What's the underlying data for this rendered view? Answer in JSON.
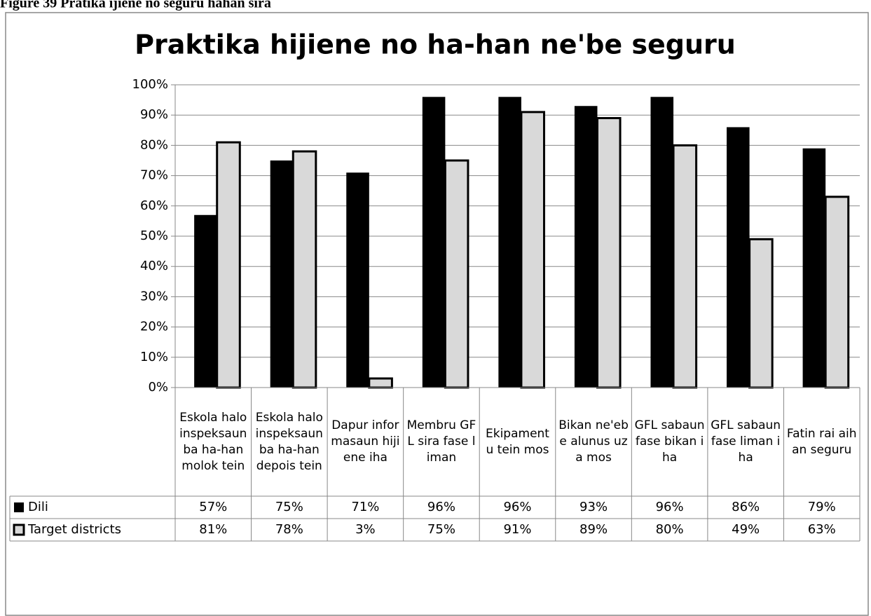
{
  "chart_data": {
    "type": "bar",
    "caption": "Figure 39 Pratika ijiene no seguru hahan sira",
    "title": "Praktika hijiene no ha-han ne'be seguru",
    "categories": [
      "Eskola halo inspeksaun ba ha-han molok tein",
      "Eskola halo inspeksaun ba ha-han depois tein",
      "Dapur informasaun hijiene iha",
      "Membru GFL sira fase liman",
      "Ekipamentu tein mos",
      "Bikan ne'ebe alunus uza mos",
      "GFL sabaun fase bikan iha",
      "GFL sabaun fase liman iha",
      "Fatin rai aihan seguru"
    ],
    "series": [
      {
        "name": "Dili",
        "color": "#000000",
        "values": [
          57,
          75,
          71,
          96,
          96,
          93,
          96,
          86,
          79
        ],
        "value_labels": [
          "57%",
          "75%",
          "71%",
          "96%",
          "96%",
          "93%",
          "96%",
          "86%",
          "79%"
        ]
      },
      {
        "name": "Target districts",
        "color": "#d9d9d9",
        "values": [
          81,
          78,
          3,
          75,
          91,
          89,
          80,
          49,
          63
        ],
        "value_labels": [
          "81%",
          "78%",
          "3%",
          "75%",
          "91%",
          "89%",
          "80%",
          "49%",
          "63%"
        ]
      }
    ],
    "ylim": [
      0,
      100
    ],
    "yticks": [
      {
        "value": 0,
        "label": "0%"
      },
      {
        "value": 10,
        "label": "10%"
      },
      {
        "value": 20,
        "label": "20%"
      },
      {
        "value": 30,
        "label": "30%"
      },
      {
        "value": 40,
        "label": "40%"
      },
      {
        "value": 50,
        "label": "50%"
      },
      {
        "value": 60,
        "label": "60%"
      },
      {
        "value": 70,
        "label": "70%"
      },
      {
        "value": 80,
        "label": "80%"
      },
      {
        "value": 90,
        "label": "90%"
      },
      {
        "value": 100,
        "label": "100%"
      }
    ],
    "grid": true,
    "bar_edge": "#000000"
  }
}
